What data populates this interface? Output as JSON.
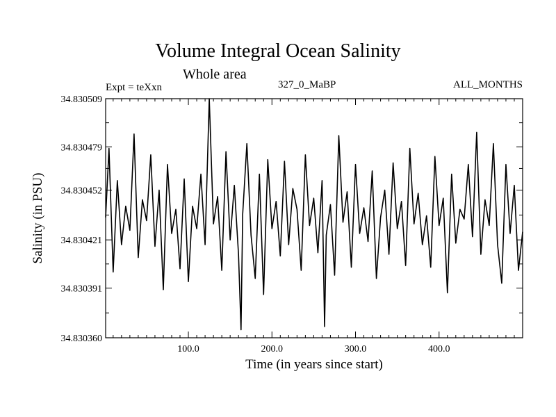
{
  "chart_data": {
    "type": "line",
    "title": "Volume Integral Ocean Salinity",
    "subtitle": "Whole area",
    "experiment_label": "Expt = teXxn",
    "period_label": "327_0_MaBP",
    "season_label": "ALL_MONTHS",
    "xlabel": "Time (in years since start)",
    "ylabel": "Salinity (in PSU)",
    "xlim": [
      1,
      500
    ],
    "ylim": [
      34.83036,
      34.830509
    ],
    "x_ticks": [
      100,
      200,
      300,
      400
    ],
    "x_tick_labels": [
      "100.0",
      "200.0",
      "300.0",
      "400.0"
    ],
    "y_ticks": [
      34.83036,
      34.830391,
      34.830421,
      34.830452,
      34.830479,
      34.830509
    ],
    "y_tick_labels": [
      "34.830360",
      "34.830391",
      "34.830421",
      "34.830452",
      "34.830479",
      "34.830509"
    ],
    "grid": false,
    "series": [
      {
        "name": "Salinity",
        "x": [
          1,
          5,
          10,
          15,
          20,
          25,
          30,
          35,
          40,
          45,
          50,
          55,
          60,
          65,
          70,
          75,
          80,
          85,
          90,
          95,
          100,
          105,
          110,
          115,
          120,
          125,
          130,
          135,
          140,
          145,
          150,
          155,
          160,
          163,
          165,
          170,
          175,
          180,
          185,
          190,
          195,
          200,
          205,
          210,
          215,
          220,
          225,
          230,
          235,
          240,
          245,
          250,
          255,
          260,
          263,
          265,
          270,
          275,
          280,
          285,
          290,
          295,
          300,
          305,
          310,
          315,
          320,
          325,
          330,
          335,
          340,
          345,
          350,
          355,
          360,
          365,
          370,
          375,
          380,
          385,
          390,
          395,
          400,
          405,
          410,
          415,
          420,
          425,
          430,
          435,
          440,
          445,
          450,
          455,
          460,
          465,
          470,
          475,
          480,
          485,
          490,
          495,
          500
        ],
        "values": [
          34.830435,
          34.830478,
          34.830401,
          34.830458,
          34.830418,
          34.830442,
          34.830427,
          34.830487,
          34.83041,
          34.830446,
          34.830433,
          34.830474,
          34.830417,
          34.830452,
          34.83039,
          34.830468,
          34.830425,
          34.83044,
          34.830403,
          34.830459,
          34.830395,
          34.830442,
          34.830428,
          34.830462,
          34.830418,
          34.830509,
          34.830431,
          34.830448,
          34.830402,
          34.830476,
          34.830421,
          34.830455,
          34.830412,
          34.830365,
          34.830437,
          34.830481,
          34.830424,
          34.830397,
          34.830462,
          34.830387,
          34.830471,
          34.830428,
          34.830445,
          34.830411,
          34.83047,
          34.830418,
          34.830453,
          34.83044,
          34.830402,
          34.830474,
          34.83043,
          34.830447,
          34.830413,
          34.830458,
          34.830367,
          34.830424,
          34.830443,
          34.830399,
          34.830486,
          34.830432,
          34.830451,
          34.830404,
          34.830468,
          34.830425,
          34.830441,
          34.83042,
          34.830464,
          34.830397,
          34.830435,
          34.830452,
          34.830412,
          34.830469,
          34.830428,
          34.830445,
          34.830405,
          34.830478,
          34.830431,
          34.83045,
          34.830418,
          34.830436,
          34.830404,
          34.830473,
          34.83043,
          34.830447,
          34.830388,
          34.830462,
          34.830419,
          34.83044,
          34.830434,
          34.830468,
          34.830423,
          34.830488,
          34.830412,
          34.830446,
          34.83043,
          34.830481,
          34.830418,
          34.830394,
          34.830468,
          34.830425,
          34.830455,
          34.830402,
          34.830426
        ]
      }
    ]
  }
}
